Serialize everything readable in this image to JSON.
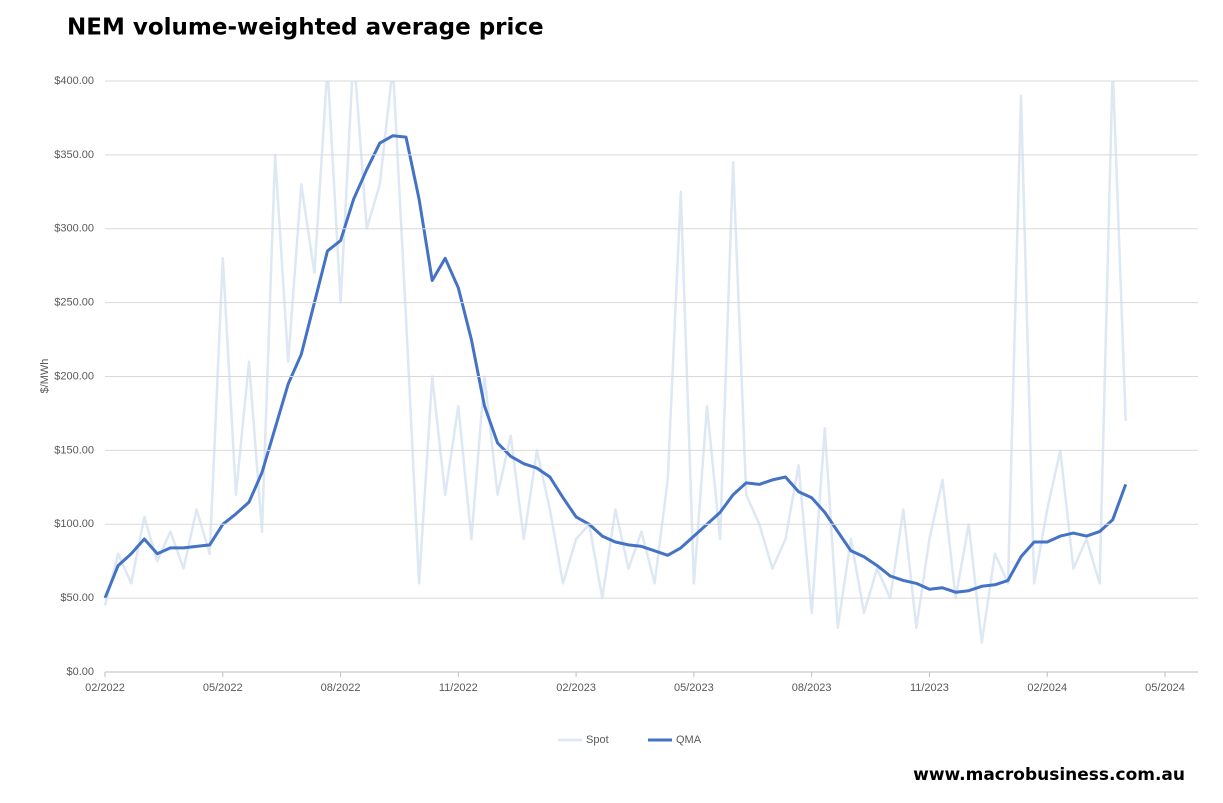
{
  "chart_data": {
    "type": "line",
    "title": "NEM volume-weighted average price",
    "y_label": "$/MWh",
    "footer": "www.macrobusiness.com.au",
    "categories": [
      "02/2022",
      null,
      null,
      null,
      null,
      null,
      null,
      null,
      null,
      "05/2022",
      null,
      null,
      null,
      null,
      null,
      null,
      null,
      null,
      "08/2022",
      null,
      null,
      null,
      null,
      null,
      null,
      null,
      null,
      "11/2022",
      null,
      null,
      null,
      null,
      null,
      null,
      null,
      null,
      "02/2023",
      null,
      null,
      null,
      null,
      null,
      null,
      null,
      null,
      "05/2023",
      null,
      null,
      null,
      null,
      null,
      null,
      null,
      null,
      "08/2023",
      null,
      null,
      null,
      null,
      null,
      null,
      null,
      null,
      "11/2023",
      null,
      null,
      null,
      null,
      null,
      null,
      null,
      null,
      "02/2024",
      null,
      null,
      null,
      null,
      null,
      null,
      null,
      null,
      "05/2024"
    ],
    "series": [
      {
        "name": "Spot",
        "color": "#dde8f4",
        "values": [
          45,
          80,
          60,
          105,
          75,
          95,
          70,
          110,
          80,
          280,
          120,
          210,
          95,
          350,
          210,
          330,
          270,
          410,
          250,
          420,
          300,
          330,
          410,
          240,
          60,
          200,
          120,
          180,
          90,
          200,
          120,
          160,
          90,
          150,
          110,
          60,
          90,
          100,
          50,
          110,
          70,
          95,
          60,
          130,
          325,
          60,
          180,
          90,
          345,
          120,
          100,
          70,
          90,
          140,
          40,
          165,
          30,
          90,
          40,
          70,
          50,
          110,
          30,
          90,
          130,
          50,
          100,
          20,
          80,
          60,
          390,
          60,
          110,
          150,
          70,
          90,
          60,
          410,
          170,
          null,
          null,
          null
        ]
      },
      {
        "name": "QMA",
        "color": "#4472c4",
        "values": [
          50,
          72,
          80,
          90,
          80,
          84,
          84,
          85,
          86,
          100,
          107,
          115,
          135,
          165,
          195,
          215,
          250,
          285,
          292,
          320,
          340,
          358,
          363,
          362,
          320,
          265,
          280,
          260,
          225,
          180,
          155,
          146,
          141,
          138,
          132,
          118,
          105,
          100,
          92,
          88,
          86,
          85,
          82,
          79,
          84,
          92,
          100,
          108,
          120,
          128,
          127,
          130,
          132,
          122,
          118,
          108,
          95,
          82,
          78,
          72,
          65,
          62,
          60,
          56,
          57,
          54,
          55,
          58,
          59,
          62,
          78,
          88,
          88,
          92,
          94,
          92,
          95,
          103,
          127,
          null,
          null,
          null
        ]
      }
    ],
    "ylim": [
      0,
      400
    ],
    "yticks": [
      {
        "value": 0,
        "label": "$0.00"
      },
      {
        "value": 50,
        "label": "$50.00"
      },
      {
        "value": 100,
        "label": "$100.00"
      },
      {
        "value": 150,
        "label": "$150.00"
      },
      {
        "value": 200,
        "label": "$200.00"
      },
      {
        "value": 250,
        "label": "$250.00"
      },
      {
        "value": 300,
        "label": "$300.00"
      },
      {
        "value": 350,
        "label": "$350.00"
      },
      {
        "value": 400,
        "label": "$400.00"
      }
    ],
    "grid": true,
    "legend": "bottom"
  }
}
